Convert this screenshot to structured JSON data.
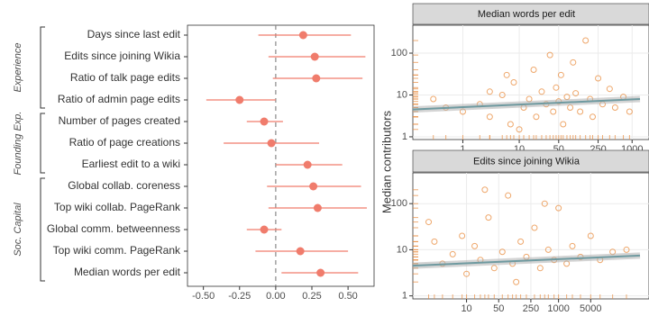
{
  "chart_data": [
    {
      "type": "dot-interval",
      "color": "#f07c6c",
      "reference_line": 0,
      "xlim": [
        -0.61,
        0.68
      ],
      "xticks": [
        {
          "value": -0.5,
          "label": "-0.50"
        },
        {
          "value": -0.25,
          "label": "-0.25"
        },
        {
          "value": 0,
          "label": "0.00"
        },
        {
          "value": 0.25,
          "label": "0.25"
        },
        {
          "value": 0.5,
          "label": "0.50"
        }
      ],
      "groups": [
        {
          "label": "Experience",
          "categories": [
            "Days since last edit",
            "Edits since joining Wikia",
            "Ratio of talk page edits",
            "Ratio of admin page edits"
          ],
          "values": [
            0.19,
            0.27,
            0.28,
            -0.25
          ],
          "lower": [
            -0.12,
            -0.05,
            -0.02,
            -0.48
          ],
          "upper": [
            0.52,
            0.62,
            0.6,
            0.0
          ]
        },
        {
          "label": "Founding Exp.",
          "categories": [
            "Number of pages created",
            "Ratio of page creations",
            "Earliest edit to a wiki"
          ],
          "values": [
            -0.08,
            -0.03,
            0.22
          ],
          "lower": [
            -0.2,
            -0.36,
            0.0
          ],
          "upper": [
            0.05,
            0.3,
            0.46
          ]
        },
        {
          "label": "Soc. Capital",
          "categories": [
            "Global collab. coreness",
            "Top wiki collab. PageRank",
            "Global comm. betweenness",
            "Top wiki comm. PageRank",
            "Median words per edit"
          ],
          "values": [
            0.26,
            0.29,
            -0.08,
            0.17,
            0.31
          ],
          "lower": [
            -0.06,
            -0.05,
            -0.2,
            -0.14,
            0.04
          ],
          "upper": [
            0.59,
            0.63,
            0.04,
            0.5,
            0.57
          ]
        }
      ]
    },
    {
      "type": "scatter",
      "title": "Median words per edit",
      "ylabel": "Median contributors",
      "log_x": true,
      "log_y": true,
      "color": "#e8893a",
      "trend_color": "#6f9aa0",
      "xlim": [
        0.13,
        1380
      ],
      "ylim": [
        0.86,
        465
      ],
      "xticks": [
        1,
        10,
        50,
        250,
        1000
      ],
      "yticks": [
        1,
        10,
        100
      ],
      "x": [
        1,
        2,
        3,
        5,
        7,
        8,
        12,
        15,
        18,
        20,
        25,
        30,
        35,
        40,
        45,
        50,
        55,
        60,
        70,
        80,
        90,
        100,
        120,
        150,
        180,
        200,
        250,
        300,
        400,
        500,
        700,
        900,
        10,
        6,
        3,
        0.5,
        0.3
      ],
      "values": [
        4,
        6,
        3,
        10,
        2,
        20,
        5,
        8,
        40,
        3,
        12,
        6,
        90,
        4,
        15,
        7,
        30,
        2,
        9,
        5,
        60,
        11,
        4,
        200,
        8,
        3,
        25,
        6,
        14,
        5,
        9,
        4,
        1.5,
        30,
        12,
        5,
        8
      ],
      "trend": {
        "x": [
          0.13,
          1380
        ],
        "values": [
          4.5,
          8
        ]
      }
    },
    {
      "type": "scatter",
      "title": "Edits since joining Wikia",
      "log_x": true,
      "log_y": true,
      "color": "#e8893a",
      "trend_color": "#6f9aa0",
      "xlim": [
        0.68,
        59000
      ],
      "ylim": [
        0.86,
        465
      ],
      "xticks": [
        10,
        50,
        250,
        1000,
        5000
      ],
      "yticks": [
        1,
        10,
        100
      ],
      "x": [
        3,
        5,
        8,
        10,
        15,
        20,
        30,
        40,
        60,
        80,
        100,
        150,
        200,
        300,
        400,
        600,
        800,
        1000,
        1500,
        2000,
        3000,
        5000,
        8000,
        15000,
        30000,
        2,
        1.5,
        25,
        500,
        120
      ],
      "values": [
        5,
        8,
        20,
        3,
        12,
        6,
        50,
        4,
        9,
        150,
        5,
        15,
        7,
        30,
        4,
        10,
        6,
        80,
        5,
        12,
        7,
        20,
        6,
        9,
        10,
        15,
        40,
        200,
        100,
        2
      ],
      "trend": {
        "x": [
          0.68,
          59000
        ],
        "values": [
          4.5,
          7.5
        ]
      }
    }
  ]
}
